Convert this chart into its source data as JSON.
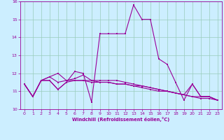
{
  "xlabel": "Windchill (Refroidissement éolien,°C)",
  "bg_color": "#cceeff",
  "line_color": "#990099",
  "grid_color": "#99ccbb",
  "xlim": [
    -0.5,
    23.5
  ],
  "ylim": [
    10,
    16
  ],
  "yticks": [
    10,
    11,
    12,
    13,
    14,
    15,
    16
  ],
  "xticks": [
    0,
    1,
    2,
    3,
    4,
    5,
    6,
    7,
    8,
    9,
    10,
    11,
    12,
    13,
    14,
    15,
    16,
    17,
    18,
    19,
    20,
    21,
    22,
    23
  ],
  "lines": [
    {
      "x": [
        0,
        1,
        2,
        3,
        4,
        5,
        6,
        7,
        8,
        9,
        10,
        11,
        12,
        13,
        14,
        15,
        16,
        17,
        18,
        19,
        20,
        21,
        22,
        23
      ],
      "y": [
        11.4,
        10.7,
        11.6,
        11.6,
        11.1,
        11.5,
        12.1,
        12.0,
        10.4,
        14.2,
        14.2,
        14.2,
        14.2,
        15.8,
        15.0,
        15.0,
        12.8,
        12.5,
        11.5,
        10.5,
        11.4,
        10.7,
        10.7,
        10.5
      ]
    },
    {
      "x": [
        0,
        1,
        2,
        3,
        4,
        5,
        6,
        7,
        8,
        9,
        10,
        11,
        12,
        13,
        14,
        15,
        16,
        17,
        18,
        19,
        20,
        21,
        22,
        23
      ],
      "y": [
        11.4,
        10.7,
        11.6,
        11.8,
        12.0,
        11.6,
        11.6,
        11.6,
        11.6,
        11.6,
        11.6,
        11.6,
        11.5,
        11.4,
        11.3,
        11.2,
        11.1,
        11.0,
        10.9,
        10.8,
        10.7,
        10.6,
        10.6,
        10.5
      ]
    },
    {
      "x": [
        0,
        1,
        2,
        3,
        4,
        5,
        6,
        7,
        8,
        9,
        10,
        11,
        12,
        13,
        14,
        15,
        16,
        17,
        18,
        19,
        20,
        21,
        22,
        23
      ],
      "y": [
        11.4,
        10.7,
        11.6,
        11.8,
        11.5,
        11.6,
        11.7,
        11.9,
        11.6,
        11.5,
        11.5,
        11.4,
        11.4,
        11.3,
        11.2,
        11.1,
        11.0,
        11.0,
        10.9,
        10.8,
        11.4,
        10.7,
        10.7,
        10.5
      ]
    },
    {
      "x": [
        0,
        1,
        2,
        3,
        4,
        5,
        6,
        7,
        8,
        9,
        10,
        11,
        12,
        13,
        14,
        15,
        16,
        17,
        18,
        19,
        20,
        21,
        22,
        23
      ],
      "y": [
        11.4,
        10.7,
        11.6,
        11.6,
        11.1,
        11.5,
        11.6,
        11.6,
        11.5,
        11.5,
        11.5,
        11.4,
        11.4,
        11.3,
        11.3,
        11.2,
        11.1,
        11.0,
        10.9,
        10.8,
        10.7,
        10.7,
        10.7,
        10.5
      ]
    }
  ]
}
